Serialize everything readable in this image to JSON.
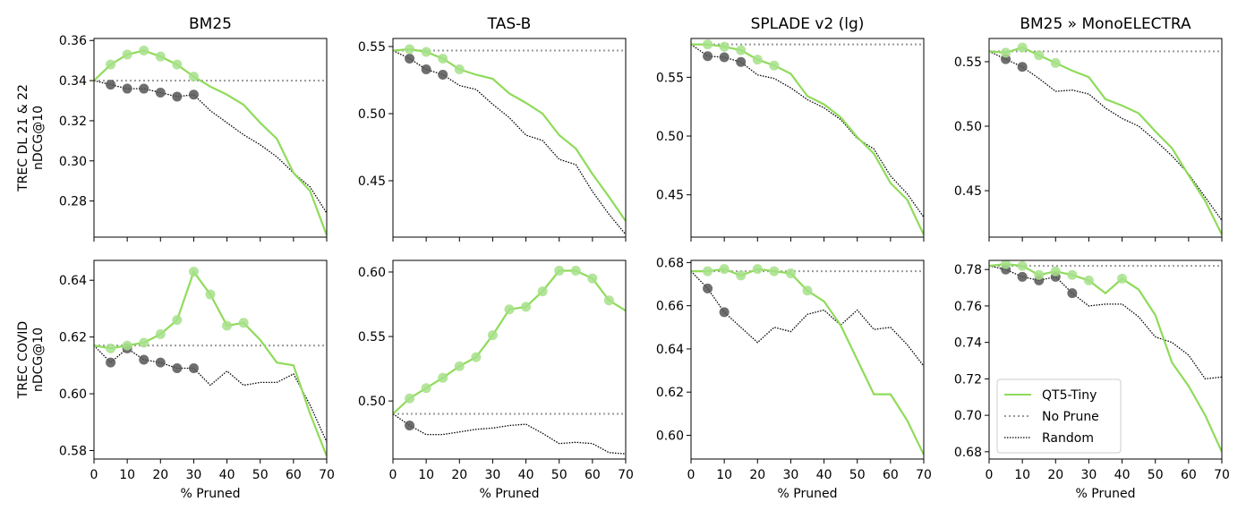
{
  "x_axis": {
    "label": "% Pruned",
    "ticks": [
      0,
      10,
      20,
      30,
      40,
      50,
      60,
      70
    ],
    "range": [
      0,
      70
    ]
  },
  "columns": [
    "BM25",
    "TAS-B",
    "SPLADE v2 (lg)",
    "BM25 » MonoELECTRA"
  ],
  "rows": [
    "TREC DL 21 & 22\nnDCG@10",
    "TREC COVID\nnDCG@10"
  ],
  "legend": {
    "entries": [
      "QT5-Tiny",
      "No Prune",
      "Random"
    ],
    "location": "lower-left",
    "panel": 7
  },
  "colors": {
    "qt5": "#8fdb5a",
    "qt5_marker": "#a6e08a",
    "random_marker": "#555555",
    "no_prune": "#999999",
    "random": "#000000"
  },
  "chart_data": [
    {
      "type": "line",
      "title": "BM25",
      "ylabel": "TREC DL 21 & 22\nnDCG@10",
      "xlim": [
        0,
        70
      ],
      "ylim": [
        0.262,
        0.361
      ],
      "yticks": [
        0.28,
        0.3,
        0.32,
        0.34,
        0.36
      ],
      "ytick_labels": [
        "0.28",
        "0.30",
        "0.32",
        "0.34",
        "0.36"
      ],
      "no_prune": 0.34,
      "qt5": [
        [
          0,
          0.34
        ],
        [
          5,
          0.348
        ],
        [
          10,
          0.353
        ],
        [
          15,
          0.355
        ],
        [
          20,
          0.352
        ],
        [
          25,
          0.348
        ],
        [
          30,
          0.342
        ],
        [
          35,
          0.337
        ],
        [
          40,
          0.333
        ],
        [
          45,
          0.328
        ],
        [
          50,
          0.319
        ],
        [
          55,
          0.311
        ],
        [
          60,
          0.294
        ],
        [
          65,
          0.285
        ],
        [
          70,
          0.263
        ]
      ],
      "qt5_markers": [
        5,
        10,
        15,
        20,
        25,
        30
      ],
      "random": [
        [
          0,
          0.34
        ],
        [
          5,
          0.338
        ],
        [
          10,
          0.336
        ],
        [
          15,
          0.336
        ],
        [
          20,
          0.334
        ],
        [
          25,
          0.332
        ],
        [
          30,
          0.333
        ],
        [
          35,
          0.325
        ],
        [
          40,
          0.319
        ],
        [
          45,
          0.313
        ],
        [
          50,
          0.308
        ],
        [
          55,
          0.302
        ],
        [
          60,
          0.294
        ],
        [
          65,
          0.287
        ],
        [
          70,
          0.274
        ]
      ],
      "random_markers": [
        5,
        10,
        15,
        20,
        25,
        30
      ]
    },
    {
      "type": "line",
      "title": "TAS-B",
      "ylabel": "",
      "xlim": [
        0,
        70
      ],
      "ylim": [
        0.408,
        0.556
      ],
      "yticks": [
        0.45,
        0.5,
        0.55
      ],
      "ytick_labels": [
        "0.45",
        "0.50",
        "0.55"
      ],
      "no_prune": 0.547,
      "qt5": [
        [
          0,
          0.547
        ],
        [
          5,
          0.548
        ],
        [
          10,
          0.546
        ],
        [
          15,
          0.541
        ],
        [
          20,
          0.533
        ],
        [
          25,
          0.529
        ],
        [
          30,
          0.526
        ],
        [
          35,
          0.515
        ],
        [
          40,
          0.508
        ],
        [
          45,
          0.5
        ],
        [
          50,
          0.484
        ],
        [
          55,
          0.474
        ],
        [
          60,
          0.455
        ],
        [
          65,
          0.438
        ],
        [
          70,
          0.42
        ]
      ],
      "qt5_markers": [
        5,
        10,
        15,
        20
      ],
      "random": [
        [
          0,
          0.547
        ],
        [
          5,
          0.541
        ],
        [
          10,
          0.533
        ],
        [
          15,
          0.529
        ],
        [
          20,
          0.521
        ],
        [
          25,
          0.518
        ],
        [
          30,
          0.507
        ],
        [
          35,
          0.497
        ],
        [
          40,
          0.484
        ],
        [
          45,
          0.48
        ],
        [
          50,
          0.466
        ],
        [
          55,
          0.462
        ],
        [
          60,
          0.442
        ],
        [
          65,
          0.425
        ],
        [
          70,
          0.41
        ]
      ],
      "random_markers": [
        5,
        10,
        15
      ]
    },
    {
      "type": "line",
      "title": "SPLADE v2 (lg)",
      "ylabel": "",
      "xlim": [
        0,
        70
      ],
      "ylim": [
        0.414,
        0.583
      ],
      "yticks": [
        0.45,
        0.5,
        0.55
      ],
      "ytick_labels": [
        "0.45",
        "0.50",
        "0.55"
      ],
      "no_prune": 0.578,
      "qt5": [
        [
          0,
          0.578
        ],
        [
          5,
          0.578
        ],
        [
          10,
          0.576
        ],
        [
          15,
          0.573
        ],
        [
          20,
          0.565
        ],
        [
          25,
          0.56
        ],
        [
          30,
          0.553
        ],
        [
          35,
          0.534
        ],
        [
          40,
          0.527
        ],
        [
          45,
          0.516
        ],
        [
          50,
          0.499
        ],
        [
          55,
          0.485
        ],
        [
          60,
          0.46
        ],
        [
          65,
          0.446
        ],
        [
          70,
          0.416
        ]
      ],
      "qt5_markers": [
        5,
        10,
        15,
        20,
        25
      ],
      "random": [
        [
          0,
          0.578
        ],
        [
          5,
          0.568
        ],
        [
          10,
          0.567
        ],
        [
          15,
          0.563
        ],
        [
          20,
          0.552
        ],
        [
          25,
          0.549
        ],
        [
          30,
          0.541
        ],
        [
          35,
          0.531
        ],
        [
          40,
          0.524
        ],
        [
          45,
          0.514
        ],
        [
          50,
          0.498
        ],
        [
          55,
          0.489
        ],
        [
          60,
          0.466
        ],
        [
          65,
          0.451
        ],
        [
          70,
          0.431
        ]
      ],
      "random_markers": [
        5,
        10,
        15
      ]
    },
    {
      "type": "line",
      "title": "BM25 » MonoELECTRA",
      "ylabel": "",
      "xlim": [
        0,
        70
      ],
      "ylim": [
        0.414,
        0.568
      ],
      "yticks": [
        0.45,
        0.5,
        0.55
      ],
      "ytick_labels": [
        "0.45",
        "0.50",
        "0.55"
      ],
      "no_prune": 0.558,
      "qt5": [
        [
          0,
          0.558
        ],
        [
          5,
          0.557
        ],
        [
          10,
          0.561
        ],
        [
          15,
          0.555
        ],
        [
          20,
          0.549
        ],
        [
          25,
          0.543
        ],
        [
          30,
          0.538
        ],
        [
          35,
          0.521
        ],
        [
          40,
          0.516
        ],
        [
          45,
          0.51
        ],
        [
          50,
          0.496
        ],
        [
          55,
          0.483
        ],
        [
          60,
          0.462
        ],
        [
          65,
          0.442
        ],
        [
          70,
          0.416
        ]
      ],
      "qt5_markers": [
        5,
        10,
        15,
        20
      ],
      "random": [
        [
          0,
          0.558
        ],
        [
          5,
          0.552
        ],
        [
          10,
          0.546
        ],
        [
          15,
          0.537
        ],
        [
          20,
          0.527
        ],
        [
          25,
          0.528
        ],
        [
          30,
          0.525
        ],
        [
          35,
          0.514
        ],
        [
          40,
          0.506
        ],
        [
          45,
          0.5
        ],
        [
          50,
          0.489
        ],
        [
          55,
          0.477
        ],
        [
          60,
          0.463
        ],
        [
          65,
          0.445
        ],
        [
          70,
          0.427
        ]
      ],
      "random_markers": [
        5,
        10
      ]
    },
    {
      "type": "line",
      "title": "",
      "ylabel": "TREC COVID\nnDCG@10",
      "xlim": [
        0,
        70
      ],
      "ylim": [
        0.577,
        0.647
      ],
      "yticks": [
        0.58,
        0.6,
        0.62,
        0.64
      ],
      "ytick_labels": [
        "0.58",
        "0.60",
        "0.62",
        "0.64"
      ],
      "no_prune": 0.617,
      "qt5": [
        [
          0,
          0.617
        ],
        [
          5,
          0.616
        ],
        [
          10,
          0.617
        ],
        [
          15,
          0.618
        ],
        [
          20,
          0.621
        ],
        [
          25,
          0.626
        ],
        [
          30,
          0.643
        ],
        [
          35,
          0.635
        ],
        [
          40,
          0.624
        ],
        [
          45,
          0.625
        ],
        [
          50,
          0.619
        ],
        [
          55,
          0.611
        ],
        [
          60,
          0.61
        ],
        [
          65,
          0.593
        ],
        [
          70,
          0.578
        ]
      ],
      "qt5_markers": [
        5,
        10,
        15,
        20,
        25,
        30,
        35,
        40,
        45
      ],
      "random": [
        [
          0,
          0.617
        ],
        [
          5,
          0.611
        ],
        [
          10,
          0.616
        ],
        [
          15,
          0.612
        ],
        [
          20,
          0.611
        ],
        [
          25,
          0.609
        ],
        [
          30,
          0.609
        ],
        [
          35,
          0.603
        ],
        [
          40,
          0.608
        ],
        [
          45,
          0.603
        ],
        [
          50,
          0.604
        ],
        [
          55,
          0.604
        ],
        [
          60,
          0.607
        ],
        [
          65,
          0.596
        ],
        [
          70,
          0.583
        ]
      ],
      "random_markers": [
        5,
        10,
        15,
        20,
        25,
        30
      ]
    },
    {
      "type": "line",
      "title": "",
      "ylabel": "",
      "xlim": [
        0,
        70
      ],
      "ylim": [
        0.455,
        0.609
      ],
      "yticks": [
        0.5,
        0.55,
        0.6
      ],
      "ytick_labels": [
        "0.50",
        "0.55",
        "0.60"
      ],
      "no_prune": 0.49,
      "qt5": [
        [
          0,
          0.49
        ],
        [
          5,
          0.502
        ],
        [
          10,
          0.51
        ],
        [
          15,
          0.518
        ],
        [
          20,
          0.527
        ],
        [
          25,
          0.534
        ],
        [
          30,
          0.551
        ],
        [
          35,
          0.571
        ],
        [
          40,
          0.573
        ],
        [
          45,
          0.585
        ],
        [
          50,
          0.601
        ],
        [
          55,
          0.601
        ],
        [
          60,
          0.595
        ],
        [
          65,
          0.578
        ],
        [
          70,
          0.57
        ]
      ],
      "qt5_markers": [
        5,
        10,
        15,
        20,
        25,
        30,
        35,
        40,
        45,
        50,
        55,
        60,
        65
      ],
      "random": [
        [
          0,
          0.49
        ],
        [
          5,
          0.481
        ],
        [
          10,
          0.474
        ],
        [
          15,
          0.474
        ],
        [
          20,
          0.476
        ],
        [
          25,
          0.478
        ],
        [
          30,
          0.479
        ],
        [
          35,
          0.481
        ],
        [
          40,
          0.482
        ],
        [
          45,
          0.475
        ],
        [
          50,
          0.467
        ],
        [
          55,
          0.468
        ],
        [
          60,
          0.467
        ],
        [
          65,
          0.46
        ],
        [
          70,
          0.459
        ]
      ],
      "random_markers": [
        5
      ]
    },
    {
      "type": "line",
      "title": "",
      "ylabel": "",
      "xlim": [
        0,
        70
      ],
      "ylim": [
        0.589,
        0.681
      ],
      "yticks": [
        0.6,
        0.62,
        0.64,
        0.66,
        0.68
      ],
      "ytick_labels": [
        "0.60",
        "0.62",
        "0.64",
        "0.66",
        "0.68"
      ],
      "no_prune": 0.676,
      "qt5": [
        [
          0,
          0.676
        ],
        [
          5,
          0.676
        ],
        [
          10,
          0.677
        ],
        [
          15,
          0.674
        ],
        [
          20,
          0.677
        ],
        [
          25,
          0.676
        ],
        [
          30,
          0.675
        ],
        [
          35,
          0.667
        ],
        [
          40,
          0.662
        ],
        [
          45,
          0.651
        ],
        [
          50,
          0.635
        ],
        [
          55,
          0.619
        ],
        [
          60,
          0.619
        ],
        [
          65,
          0.607
        ],
        [
          70,
          0.591
        ]
      ],
      "qt5_markers": [
        5,
        10,
        15,
        20,
        25,
        30,
        35
      ],
      "random": [
        [
          0,
          0.676
        ],
        [
          5,
          0.668
        ],
        [
          10,
          0.657
        ],
        [
          15,
          0.65
        ],
        [
          20,
          0.643
        ],
        [
          25,
          0.65
        ],
        [
          30,
          0.648
        ],
        [
          35,
          0.656
        ],
        [
          40,
          0.658
        ],
        [
          45,
          0.651
        ],
        [
          50,
          0.658
        ],
        [
          55,
          0.649
        ],
        [
          60,
          0.65
        ],
        [
          65,
          0.642
        ],
        [
          70,
          0.632
        ]
      ],
      "random_markers": [
        5,
        10
      ]
    },
    {
      "type": "line",
      "title": "",
      "ylabel": "",
      "xlim": [
        0,
        70
      ],
      "ylim": [
        0.676,
        0.785
      ],
      "yticks": [
        0.68,
        0.7,
        0.72,
        0.74,
        0.76,
        0.78
      ],
      "ytick_labels": [
        "0.68",
        "0.70",
        "0.72",
        "0.74",
        "0.76",
        "0.78"
      ],
      "no_prune": 0.782,
      "qt5": [
        [
          0,
          0.782
        ],
        [
          5,
          0.783
        ],
        [
          10,
          0.782
        ],
        [
          15,
          0.777
        ],
        [
          20,
          0.779
        ],
        [
          25,
          0.777
        ],
        [
          30,
          0.774
        ],
        [
          35,
          0.767
        ],
        [
          40,
          0.775
        ],
        [
          45,
          0.769
        ],
        [
          50,
          0.755
        ],
        [
          55,
          0.729
        ],
        [
          60,
          0.716
        ],
        [
          65,
          0.7
        ],
        [
          70,
          0.68
        ]
      ],
      "qt5_markers": [
        5,
        10,
        15,
        20,
        25,
        30,
        40
      ],
      "random": [
        [
          0,
          0.782
        ],
        [
          5,
          0.78
        ],
        [
          10,
          0.776
        ],
        [
          15,
          0.774
        ],
        [
          20,
          0.776
        ],
        [
          25,
          0.767
        ],
        [
          30,
          0.76
        ],
        [
          35,
          0.761
        ],
        [
          40,
          0.761
        ],
        [
          45,
          0.754
        ],
        [
          50,
          0.743
        ],
        [
          55,
          0.74
        ],
        [
          60,
          0.733
        ],
        [
          65,
          0.72
        ],
        [
          70,
          0.721
        ]
      ],
      "random_markers": [
        5,
        10,
        15,
        20,
        25
      ]
    }
  ]
}
